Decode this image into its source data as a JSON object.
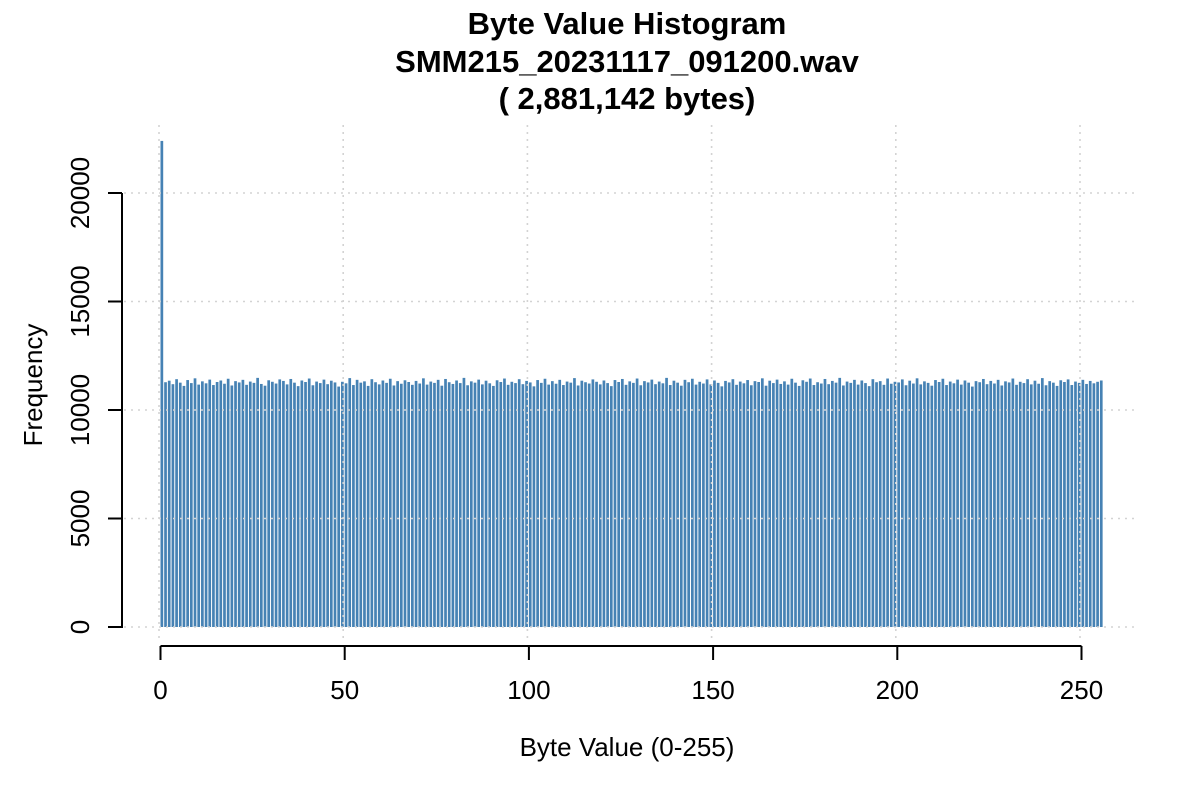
{
  "chart_data": {
    "type": "bar",
    "title": "Byte Value Histogram",
    "subtitle": "SMM215_20231117_091200.wav",
    "subtitle2": "( 2,881,142 bytes)",
    "xlabel": "Byte Value (0-255)",
    "ylabel": "Frequency",
    "x_ticks": [
      0,
      50,
      100,
      150,
      200,
      250
    ],
    "y_ticks": [
      0,
      5000,
      10000,
      15000,
      20000
    ],
    "xlim": [
      0,
      256
    ],
    "ylim": [
      0,
      22450
    ],
    "grid": "dotted, drawn over bars, both axes",
    "legend": "none",
    "bar_color": "#4682b4",
    "grid_color": "#d3d3d3",
    "axis_color": "#000000",
    "values": [
      22400,
      11280,
      11350,
      11190,
      11420,
      11260,
      11110,
      11380,
      11240,
      11460,
      11170,
      11320,
      11230,
      11400,
      11150,
      11290,
      11360,
      11210,
      11440,
      11130,
      11330,
      11270,
      11390,
      11160,
      11310,
      11250,
      11480,
      11200,
      11120,
      11370,
      11300,
      11220,
      11410,
      11340,
      11180,
      11430,
      11260,
      11100,
      11360,
      11290,
      11450,
      11140,
      11310,
      11240,
      11400,
      11190,
      11350,
      11270,
      11080,
      11300,
      11230,
      11470,
      11150,
      11390,
      11260,
      11320,
      11110,
      11420,
      11280,
      11180,
      11360,
      11250,
      11440,
      11130,
      11330,
      11210,
      11370,
      11290,
      11160,
      11340,
      11220,
      11460,
      11170,
      11310,
      11250,
      11390,
      11120,
      11430,
      11280,
      11200,
      11360,
      11240,
      11480,
      11140,
      11320,
      11260,
      11400,
      11180,
      11350,
      11230,
      11110,
      11370,
      11290,
      11450,
      11160,
      11300,
      11240,
      11420,
      11190,
      11340,
      11270,
      11090,
      11380,
      11250,
      11440,
      11170,
      11330,
      11210,
      11390,
      11150,
      11310,
      11260,
      11470,
      11130,
      11350,
      11280,
      11220,
      11410,
      11300,
      11180,
      11360,
      11240,
      11100,
      11380,
      11290,
      11430,
      11160,
      11320,
      11250,
      11450,
      11140,
      11330,
      11270,
      11400,
      11190,
      11310,
      11230,
      11480,
      11150,
      11350,
      11260,
      11120,
      11390,
      11280,
      11440,
      11170,
      11300,
      11220,
      11410,
      11180,
      11360,
      11250,
      11090,
      11340,
      11270,
      11420,
      11160,
      11310,
      11230,
      11380,
      11140,
      11330,
      11290,
      11460,
      11120,
      11350,
      11240,
      11400,
      11200,
      11320,
      11170,
      11440,
      11260,
      11110,
      11370,
      11300,
      11450,
      11150,
      11280,
      11220,
      11430,
      11190,
      11340,
      11260,
      11480,
      11130,
      11310,
      11250,
      11390,
      11170,
      11360,
      11240,
      11100,
      11420,
      11280,
      11330,
      11160,
      11450,
      11210,
      11300,
      11270,
      11410,
      11140,
      11350,
      11220,
      11460,
      11180,
      11320,
      11250,
      11120,
      11380,
      11290,
      11440,
      11150,
      11310,
      11230,
      11400,
      11170,
      11360,
      11260,
      11080,
      11330,
      11280,
      11430,
      11190,
      11340,
      11220,
      11390,
      11130,
      11320,
      11270,
      11450,
      11160,
      11300,
      11240,
      11420,
      11180,
      11350,
      11210,
      11470,
      11140,
      11330,
      11260,
      11110,
      11370,
      11290,
      11410,
      11150,
      11310,
      11250,
      11390,
      11200,
      11340,
      11230,
      11300,
      11360
    ]
  }
}
